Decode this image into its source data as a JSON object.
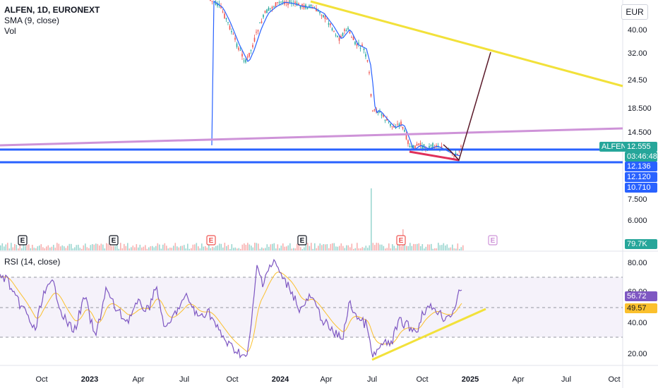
{
  "header": {
    "symbol_line": "ALFEN, 1D, EURONEXT",
    "sma_label": "SMA (9, close)",
    "vol_label": "Vol",
    "currency_button": "EUR"
  },
  "price_axis": {
    "ticks": [
      "40.00",
      "32.00",
      "24.50",
      "18.500",
      "14.500",
      "7.500",
      "6.000"
    ]
  },
  "tags": {
    "symbol_tag": "ALFEN",
    "last_price": "12.555",
    "countdown": "03:46:48",
    "level_1": "12.136",
    "level_2": "12.120",
    "level_3": "10.710",
    "volume": "79.7K",
    "rsi_value": "56.72",
    "rsi_ma_value": "49.57"
  },
  "rsi": {
    "legend": "RSI (14, close)",
    "ticks": [
      "80.00",
      "60.00",
      "40.00",
      "20.00"
    ]
  },
  "time_axis": {
    "labels": [
      "Oct",
      "2023",
      "Apr",
      "Jul",
      "Oct",
      "2024",
      "Apr",
      "Jul",
      "Oct",
      "2025",
      "Apr",
      "Jul",
      "Oct"
    ]
  },
  "earnings_markers": [
    "E",
    "E",
    "E",
    "E",
    "E",
    "E"
  ],
  "colors": {
    "up": "#26a69a",
    "down": "#ef5350",
    "sma": "#2962ff",
    "rsi": "#7e57c2",
    "rsi_ma": "#fbc02d",
    "trendline_yellow": "#f2e13a",
    "trendline_purple": "#ce93d8",
    "support_blue": "#2962ff",
    "wedge_red": "#e0305a",
    "projection": "#5b1a2a"
  },
  "chart_data": {
    "type": "line",
    "price_series": {
      "x": [
        "2024-02",
        "2024-03",
        "2024-04",
        "2024-05",
        "2024-06",
        "2024-07",
        "2024-08",
        "2024-09",
        "2024-10",
        "2024-11",
        "2024-12"
      ],
      "values": [
        54.0,
        50.0,
        42.0,
        36.0,
        27.0,
        19.0,
        17.0,
        13.0,
        13.2,
        12.6,
        12.555
      ]
    },
    "rsi_series": {
      "x": [
        "2022-10",
        "2023-01",
        "2023-04",
        "2023-07",
        "2023-10",
        "2024-01",
        "2024-04",
        "2024-07",
        "2024-10",
        "2024-12"
      ],
      "values": [
        55,
        48,
        52,
        50,
        18,
        78,
        45,
        18,
        45,
        56.72
      ]
    }
  }
}
